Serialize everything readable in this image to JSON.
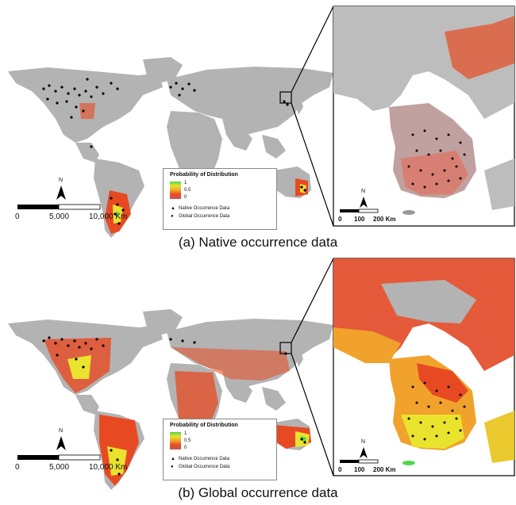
{
  "panels": [
    {
      "id": "a",
      "caption": "(a)  Native occurrence data",
      "legend": {
        "title": "Probability of Distribution",
        "ticks": [
          "1",
          "0.5",
          "0"
        ],
        "native_label": "Native Occurrence Data",
        "global_label": "Global Occurrence Data"
      },
      "scale": {
        "labels": [
          "0",
          "5,000",
          "10,000 Km"
        ]
      },
      "inset_scale": {
        "labels": [
          "0",
          "100",
          "200 Km"
        ]
      },
      "north_label": "N"
    },
    {
      "id": "b",
      "caption": "(b)  Global occurrence data",
      "legend": {
        "title": "Probability of Distribution",
        "ticks": [
          "1",
          "0.5",
          "0"
        ],
        "native_label": "Native Occurrence Data",
        "global_label": "Global Occurrence Data"
      },
      "scale": {
        "labels": [
          "0",
          "5,000",
          "10,000 Km"
        ]
      },
      "inset_scale": {
        "labels": [
          "0",
          "100",
          "200 Km"
        ]
      },
      "north_label": "N"
    }
  ],
  "colors": {
    "land": "#b3b3b3",
    "low": "#e74a22",
    "mid": "#f1a22c",
    "high": "#e9e32e",
    "top": "#4fd64a",
    "point": "#000000"
  }
}
